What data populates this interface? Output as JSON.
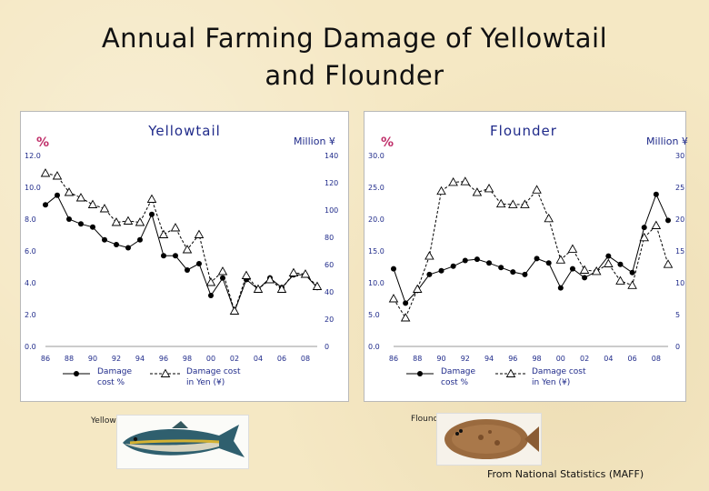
{
  "title_line1": "Annual Farming Damage of Yellowtail",
  "title_line2": "and Flounder",
  "source": "From National Statistics (MAFF)",
  "fish_labels": {
    "yellowtail": "Yellowtail",
    "flounder": "Flounder"
  },
  "colors": {
    "pct_label": "#c0306a",
    "chart_text": "#1f2a8a",
    "line": "#000000"
  },
  "chart_data": [
    {
      "type": "line",
      "title": "Yellowtail",
      "left_axis_label": "%",
      "right_axis_label": "Million ¥",
      "x_ticks": [
        "86",
        "88",
        "90",
        "92",
        "94",
        "96",
        "98",
        "00",
        "02",
        "04",
        "06",
        "08"
      ],
      "y_left_ticks": [
        "0.0",
        "2.0",
        "4.0",
        "6.0",
        "8.0",
        "10.0",
        "12.0"
      ],
      "y_right_ticks": [
        "0",
        "20",
        "40",
        "60",
        "80",
        "100",
        "120",
        "140"
      ],
      "y_left_range": [
        0,
        12
      ],
      "y_right_range": [
        0,
        140
      ],
      "x": [
        1986,
        1987,
        1988,
        1989,
        1990,
        1991,
        1992,
        1993,
        1994,
        1995,
        1996,
        1997,
        1998,
        1999,
        2000,
        2001,
        2002,
        2003,
        2004,
        2005,
        2006,
        2007,
        2008,
        2009
      ],
      "series": [
        {
          "name": "Damage cost %",
          "axis": "left",
          "marker": "circle",
          "dash": "solid",
          "values": [
            8.9,
            9.5,
            8.0,
            7.7,
            7.5,
            6.7,
            6.4,
            6.2,
            6.7,
            8.3,
            5.7,
            5.7,
            4.8,
            5.2,
            3.2,
            4.3,
            2.2,
            4.2,
            3.6,
            4.3,
            3.7,
            4.5,
            4.5,
            3.7
          ]
        },
        {
          "name": "Damage cost in Yen (¥)",
          "axis": "right",
          "marker": "triangle",
          "dash": "dashed",
          "values": [
            127,
            125,
            113,
            109,
            104,
            101,
            91,
            92,
            91,
            108,
            82,
            87,
            71,
            82,
            47,
            55,
            26,
            52,
            42,
            49,
            42,
            54,
            53,
            44
          ]
        }
      ],
      "legend": [
        {
          "label_line1": "Damage",
          "label_line2": "cost %"
        },
        {
          "label_line1": "Damage cost",
          "label_line2": "in Yen (¥)"
        }
      ]
    },
    {
      "type": "line",
      "title": "Flounder",
      "left_axis_label": "%",
      "right_axis_label": "Million ¥",
      "x_ticks": [
        "86",
        "88",
        "90",
        "92",
        "94",
        "96",
        "98",
        "00",
        "02",
        "04",
        "06",
        "08"
      ],
      "y_left_ticks": [
        "0.0",
        "5.0",
        "10.0",
        "15.0",
        "20.0",
        "25.0",
        "30.0"
      ],
      "y_right_ticks": [
        "0",
        "5",
        "10",
        "15",
        "20",
        "25",
        "30"
      ],
      "y_left_range": [
        0,
        30
      ],
      "y_right_range": [
        0,
        30
      ],
      "x": [
        1986,
        1987,
        1988,
        1989,
        1990,
        1991,
        1992,
        1993,
        1994,
        1995,
        1996,
        1997,
        1998,
        1999,
        2000,
        2001,
        2002,
        2003,
        2004,
        2005,
        2006,
        2007,
        2008,
        2009
      ],
      "series": [
        {
          "name": "Damage cost %",
          "axis": "left",
          "marker": "circle",
          "dash": "solid",
          "values": [
            12.2,
            6.8,
            8.8,
            11.3,
            11.9,
            12.6,
            13.5,
            13.7,
            13.1,
            12.4,
            11.7,
            11.3,
            13.8,
            13.1,
            9.2,
            12.2,
            10.8,
            11.8,
            14.2,
            12.9,
            11.6,
            18.7,
            23.9,
            19.8
          ]
        },
        {
          "name": "Damage cost in Yen (¥)",
          "axis": "right",
          "marker": "triangle",
          "dash": "dashed",
          "values": [
            7.5,
            4.5,
            9.0,
            14.2,
            24.4,
            25.8,
            25.9,
            24.2,
            24.8,
            22.4,
            22.3,
            22.3,
            24.6,
            20.1,
            13.6,
            15.3,
            12.0,
            11.8,
            13.0,
            10.3,
            9.6,
            17.1,
            19.0,
            12.9
          ]
        }
      ],
      "legend": [
        {
          "label_line1": "Damage",
          "label_line2": "cost %"
        },
        {
          "label_line1": "Damage cost",
          "label_line2": "in Yen (¥)"
        }
      ]
    }
  ]
}
